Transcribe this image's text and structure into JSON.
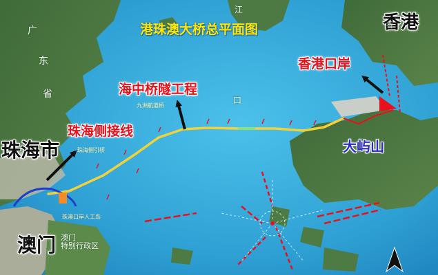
{
  "map_title": "港珠澳大桥总平面图",
  "labels": {
    "hongkong": "香港",
    "hk_port": "香港口岸",
    "tunnel": "海中桥隧工程",
    "zh_link": "珠海侧接线",
    "zhuhai": "珠海市",
    "lantau": "大屿山",
    "macau": "澳门",
    "macau_sar": "澳门\n特别行政区",
    "guangdong_1": "广",
    "guangdong_2": "东",
    "guangdong_3": "省",
    "jiang": "江",
    "kou": "口",
    "hk_small": "香",
    "zh_bridge_small": "珠海侧引桥",
    "jiuzhou_small": "九洲航道桥",
    "macau_small": "珠澳口岸人工岛"
  },
  "colors": {
    "sea": "#3aa6d8",
    "bridge": "#f2d23a",
    "annotation": "#e8121c",
    "accent_blue": "#2b2cc8"
  }
}
